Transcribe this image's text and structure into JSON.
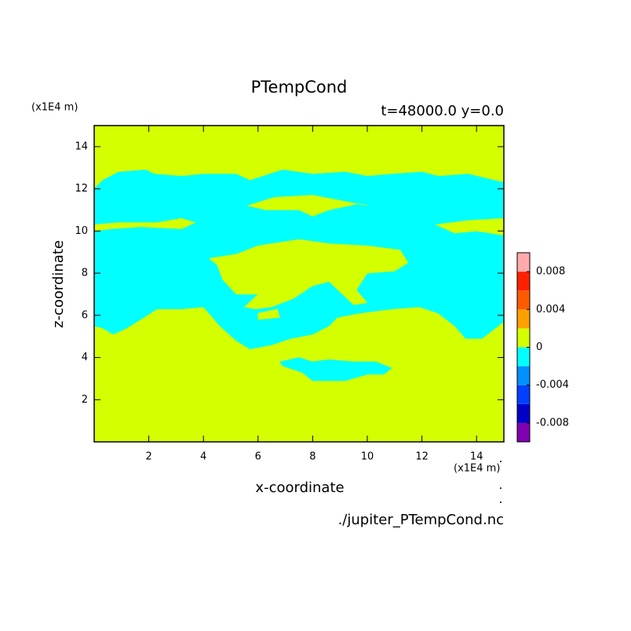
{
  "chart_data": {
    "type": "contour",
    "title": "PTempCond",
    "subtitle": "t=48000.0 y=0.0",
    "x_label": "x-coordinate",
    "y_label": "z-coordinate",
    "x_unit": "(x1E4 m)",
    "y_unit": "(x1E4 m)",
    "source": "./jupiter_PTempCond.nc",
    "xlim": [
      0,
      15
    ],
    "ylim": [
      0,
      15
    ],
    "xticks": [
      2,
      4,
      6,
      8,
      10,
      12,
      14
    ],
    "yticks": [
      2,
      4,
      6,
      8,
      10,
      12,
      14
    ],
    "levels": [
      -0.01,
      -0.008,
      -0.006,
      -0.004,
      -0.002,
      0,
      0.002,
      0.004,
      0.006,
      0.008,
      0.01
    ],
    "colors": [
      "#8000b0",
      "#0000c8",
      "#0040ff",
      "#0090ff",
      "#00ffff",
      "#d4ff00",
      "#ffa000",
      "#ff5a00",
      "#ff2000",
      "#ffaaaa"
    ],
    "colorbar_ticks": [
      0.008,
      0.004,
      0,
      -0.004,
      -0.008
    ],
    "regions": [
      {
        "level": 0,
        "x": [
          0,
          15,
          15,
          0
        ],
        "z": [
          0,
          0,
          15,
          15
        ]
      },
      {
        "level": -0.002,
        "x": [
          0,
          0.3,
          0.9,
          1.9,
          2.2,
          3.2,
          4.0,
          5.2,
          5.7,
          6.9,
          8.0,
          9.2,
          10.0,
          10.9,
          12.0,
          12.6,
          13.7,
          15,
          15,
          14.6,
          14.2,
          13.6,
          13.2,
          12.6,
          11.9,
          10.9,
          9.7,
          8.9,
          8.6,
          8.0,
          7.2,
          6.5,
          5.7,
          5.2,
          4.6,
          4.0,
          3.2,
          2.3,
          1.7,
          1.2,
          0.7,
          0.3,
          0
        ],
        "z": [
          12.0,
          12.4,
          12.8,
          12.9,
          12.7,
          12.6,
          12.7,
          12.7,
          12.4,
          12.9,
          12.7,
          12.8,
          12.6,
          12.7,
          12.8,
          12.6,
          12.7,
          12.3,
          5.7,
          5.3,
          4.9,
          4.9,
          5.5,
          6.1,
          6.4,
          6.3,
          6.1,
          5.9,
          5.5,
          5.1,
          4.9,
          4.6,
          4.4,
          4.8,
          5.5,
          6.4,
          6.3,
          6.3,
          5.8,
          5.4,
          5.1,
          5.4,
          5.5
        ]
      },
      {
        "level": 0,
        "x": [
          4.2,
          5.2,
          6.0,
          7.5,
          8.6,
          10.0,
          11.2,
          11.5,
          11.0,
          10.0,
          9.6,
          10.0,
          9.5,
          8.6,
          8.0,
          7.3,
          6.5,
          5.9,
          5.5,
          6.0,
          5.2,
          4.7,
          4.5
        ],
        "z": [
          8.7,
          8.9,
          9.3,
          9.6,
          9.4,
          9.3,
          9.1,
          8.5,
          8.1,
          8.0,
          7.2,
          6.6,
          6.5,
          7.6,
          7.4,
          6.8,
          6.4,
          6.3,
          6.4,
          7.0,
          7.0,
          7.7,
          8.4
        ]
      },
      {
        "level": 0,
        "x": [
          5.6,
          6.6,
          8.0,
          9.2,
          10.0,
          9.7,
          8.6,
          8.0,
          7.5,
          6.3
        ],
        "z": [
          11.2,
          11.6,
          11.7,
          11.4,
          11.2,
          11.3,
          11.0,
          10.7,
          11.0,
          11.0
        ]
      },
      {
        "level": 0,
        "x": [
          0,
          0.9,
          2.3,
          3.2,
          3.7,
          3.2,
          1.7,
          0.6,
          0
        ],
        "z": [
          10.3,
          10.4,
          10.4,
          10.6,
          10.4,
          10.1,
          10.2,
          10.1,
          10.0
        ]
      },
      {
        "level": 0,
        "x": [
          12.5,
          13.7,
          15,
          15,
          14.0,
          13.2
        ],
        "z": [
          10.3,
          10.5,
          10.6,
          9.8,
          10.0,
          9.9
        ]
      },
      {
        "level": 0,
        "x": [
          6.0,
          6.7,
          6.8,
          6.0
        ],
        "z": [
          6.1,
          6.3,
          5.9,
          5.8
        ]
      },
      {
        "level": -0.002,
        "x": [
          6.8,
          7.5,
          8.0,
          8.6,
          9.5,
          10.3,
          10.9,
          10.6,
          10.0,
          9.2,
          8.0,
          7.6,
          6.9
        ],
        "z": [
          3.8,
          4.0,
          3.8,
          3.9,
          3.8,
          3.8,
          3.5,
          3.2,
          3.2,
          2.9,
          2.9,
          3.3,
          3.6
        ]
      }
    ]
  }
}
